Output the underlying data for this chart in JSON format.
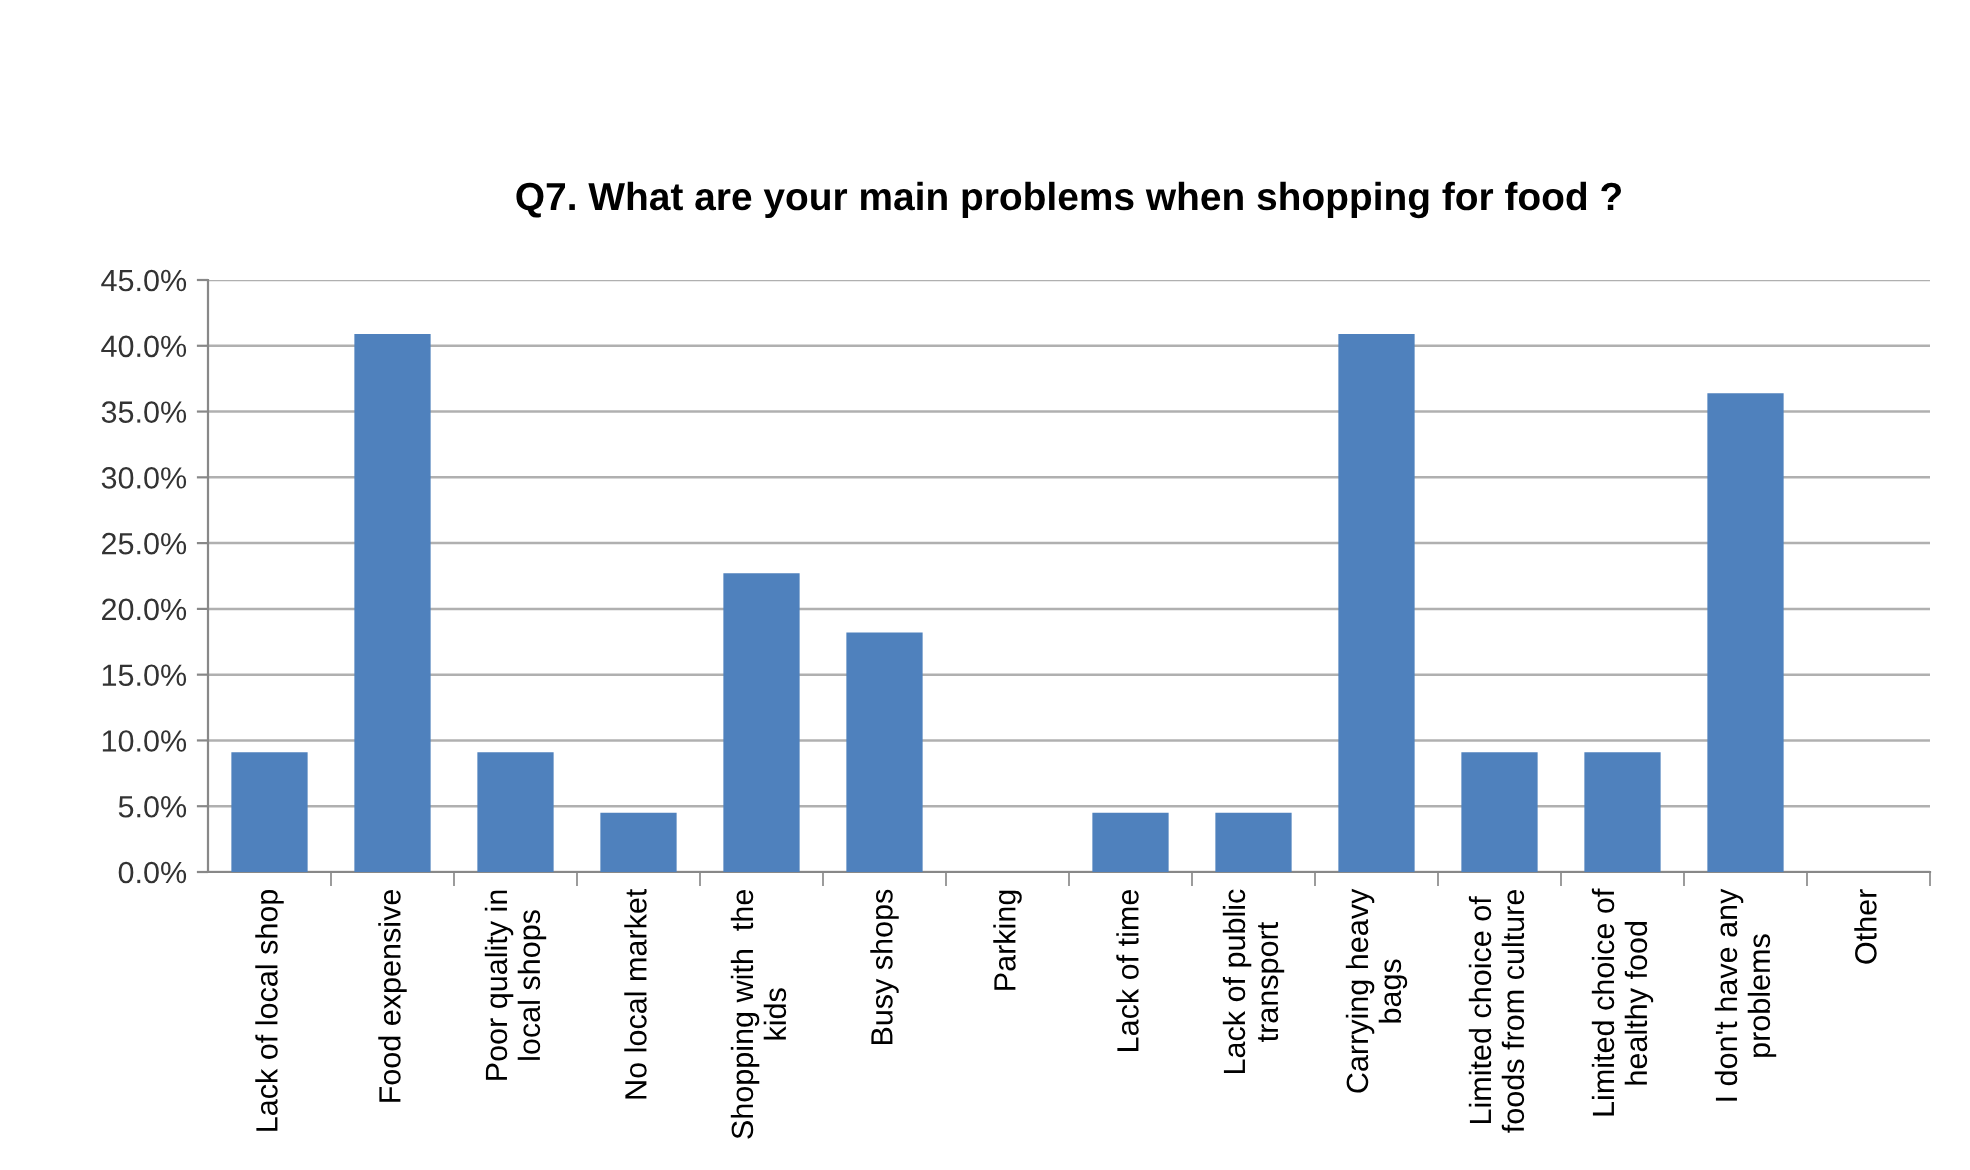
{
  "chart_data": {
    "type": "bar",
    "title": "Q7. What are your main problems when shopping for food ?",
    "categories": [
      "Lack of local shop",
      "Food expensive",
      "Poor quality in\nlocal shops",
      "No local market",
      "Shopping with  the\nkids",
      "Busy shops",
      "Parking",
      "Lack of time",
      "Lack of public\ntransport",
      "Carrying heavy\nbags",
      "Limited choice of\nfoods from culture",
      "Limited choice of\nhealthy food",
      "I don't have any\nproblems",
      "Other"
    ],
    "values": [
      9.1,
      40.9,
      9.1,
      4.5,
      22.7,
      18.2,
      0,
      4.5,
      4.5,
      40.9,
      9.1,
      9.1,
      36.4,
      0
    ],
    "color": "#4f81bd",
    "ylim": [
      0,
      45
    ],
    "yticks": [
      {
        "value": 0,
        "label": "0.0%"
      },
      {
        "value": 5,
        "label": "5.0%"
      },
      {
        "value": 10,
        "label": "10.0%"
      },
      {
        "value": 15,
        "label": "15.0%"
      },
      {
        "value": 20,
        "label": "20.0%"
      },
      {
        "value": 25,
        "label": "25.0%"
      },
      {
        "value": 30,
        "label": "30.0%"
      },
      {
        "value": 35,
        "label": "35.0%"
      },
      {
        "value": 40,
        "label": "40.0%"
      },
      {
        "value": 45,
        "label": "45.0%"
      }
    ],
    "grid": "y"
  }
}
